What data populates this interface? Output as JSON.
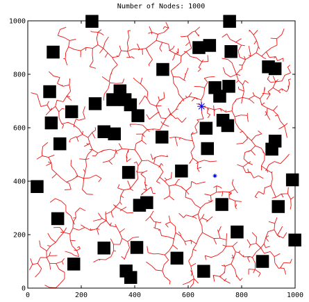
{
  "chart_data": {
    "type": "scatter",
    "title": "Number of Nodes: 1000",
    "xlim": [
      0,
      1000
    ],
    "ylim": [
      0,
      1000
    ],
    "xticks": [
      0,
      200,
      400,
      600,
      800,
      1000
    ],
    "yticks": [
      0,
      200,
      400,
      600,
      800,
      1000
    ],
    "grid": false,
    "xlabel": "",
    "ylabel": "",
    "colors": {
      "tree": "#ee1111",
      "obstacle": "#000000",
      "root": "#0000ee",
      "node": "#0000ee"
    },
    "root": [
      650,
      680
    ],
    "node_marker": [
      700,
      420
    ],
    "obstacles": [
      [
        240,
        998
      ],
      [
        755,
        998
      ],
      [
        95,
        883
      ],
      [
        640,
        900
      ],
      [
        680,
        908
      ],
      [
        760,
        885
      ],
      [
        900,
        828
      ],
      [
        925,
        821
      ],
      [
        505,
        818
      ],
      [
        82,
        735
      ],
      [
        345,
        738
      ],
      [
        318,
        705
      ],
      [
        364,
        705
      ],
      [
        384,
        686
      ],
      [
        412,
        645
      ],
      [
        252,
        690
      ],
      [
        700,
        750
      ],
      [
        752,
        755
      ],
      [
        718,
        718
      ],
      [
        164,
        660
      ],
      [
        88,
        618
      ],
      [
        730,
        628
      ],
      [
        748,
        608
      ],
      [
        667,
        598
      ],
      [
        285,
        585
      ],
      [
        324,
        577
      ],
      [
        502,
        565
      ],
      [
        925,
        550
      ],
      [
        913,
        520
      ],
      [
        120,
        540
      ],
      [
        672,
        522
      ],
      [
        377,
        433
      ],
      [
        575,
        438
      ],
      [
        35,
        380
      ],
      [
        990,
        405
      ],
      [
        418,
        310
      ],
      [
        445,
        320
      ],
      [
        726,
        313
      ],
      [
        937,
        305
      ],
      [
        112,
        260
      ],
      [
        783,
        210
      ],
      [
        999,
        180
      ],
      [
        285,
        150
      ],
      [
        408,
        152
      ],
      [
        558,
        112
      ],
      [
        172,
        90
      ],
      [
        878,
        100
      ],
      [
        368,
        64
      ],
      [
        385,
        40
      ],
      [
        658,
        63
      ]
    ],
    "tree_points": 1000
  }
}
